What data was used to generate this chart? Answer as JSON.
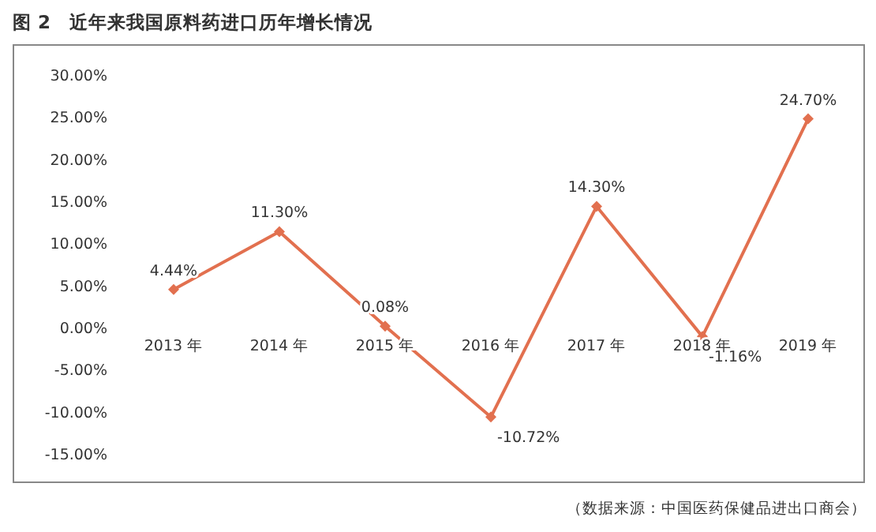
{
  "chart_data": {
    "type": "line",
    "title": "图 2　近年来我国原料药进口历年增长情况",
    "categories": [
      "2013 年",
      "2014 年",
      "2015 年",
      "2016 年",
      "2017 年",
      "2018 年",
      "2019 年"
    ],
    "series": [
      {
        "color": "#e2704f",
        "values": [
          4.44,
          11.3,
          0.08,
          -10.72,
          14.3,
          -1.16,
          24.7
        ],
        "value_labels": [
          "4.44%",
          "11.30%",
          "0.08%",
          "-10.72%",
          "14.30%",
          "-1.16%",
          "24.70%"
        ]
      }
    ],
    "ylim": [
      -15,
      30
    ],
    "yticks": [
      {
        "value": -15,
        "label": "-15.00%"
      },
      {
        "value": -10,
        "label": "-10.00%"
      },
      {
        "value": -5,
        "label": "-5.00%"
      },
      {
        "value": 0,
        "label": "0.00%"
      },
      {
        "value": 5,
        "label": "5.00%"
      },
      {
        "value": 10,
        "label": "10.00%"
      },
      {
        "value": 15,
        "label": "15.00%"
      },
      {
        "value": 20,
        "label": "20.00%"
      },
      {
        "value": 25,
        "label": "25.00%"
      },
      {
        "value": 30,
        "label": "30.00%"
      }
    ],
    "marker": "diamond",
    "grid": false,
    "annotations": [
      "（数据来源：中国医药保健品进出口商会）"
    ]
  }
}
